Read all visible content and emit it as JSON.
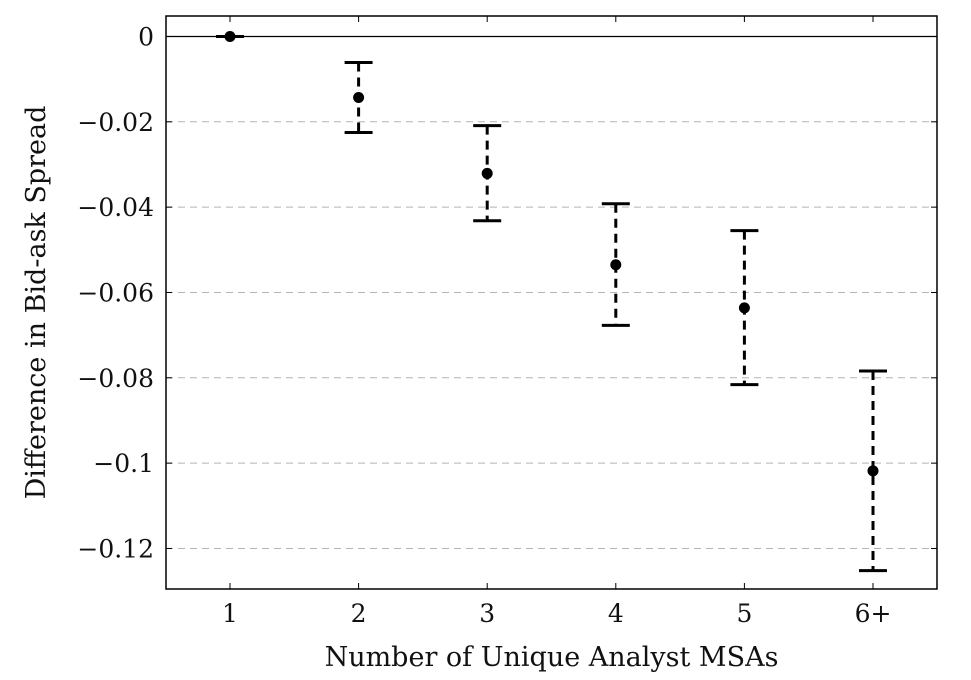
{
  "chart_data": {
    "type": "scatter",
    "xlabel": "Number of Unique Analyst MSAs",
    "ylabel": "Difference in Bid-ask Spread",
    "categories": [
      "1",
      "2",
      "3",
      "4",
      "5",
      "6+"
    ],
    "x_tick_labels": [
      "1",
      "2",
      "3",
      "4",
      "5",
      "6+"
    ],
    "y_tick_values": [
      0,
      -0.02,
      -0.04,
      -0.06,
      -0.08,
      -0.1,
      -0.12
    ],
    "y_tick_labels": [
      "0",
      "−0.02",
      "−0.04",
      "−0.06",
      "−0.08",
      "−0.1",
      "−0.12"
    ],
    "ylim": [
      -0.1295,
      0.0048
    ],
    "reference_line": 0,
    "grid": "dashed horizontal",
    "series": [
      {
        "values": [
          0,
          -0.0143,
          -0.0321,
          -0.0535,
          -0.0636,
          -0.1018
        ],
        "ci_low": [
          0,
          -0.0225,
          -0.0432,
          -0.0677,
          -0.0816,
          -0.1252
        ],
        "ci_high": [
          0,
          -0.0061,
          -0.0209,
          -0.0392,
          -0.0455,
          -0.0784
        ]
      }
    ],
    "colors": {
      "marker": "#000000",
      "grid": "#b4b4b4",
      "axis": "#000000"
    }
  }
}
